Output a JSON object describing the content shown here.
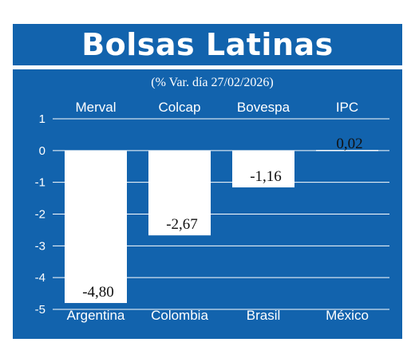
{
  "chart_data": {
    "type": "bar",
    "title": "Bolsas Latinas",
    "subtitle": "(% Var. día 27/02/2026)",
    "index_names": [
      "Merval",
      "Colcap",
      "Bovespa",
      "IPC"
    ],
    "categories": [
      "Argentina",
      "Colombia",
      "Brasil",
      "México"
    ],
    "values": [
      -4.8,
      -2.67,
      -1.16,
      0.02
    ],
    "value_labels": [
      "-4,80",
      "-2,67",
      "-1,16",
      "0,02"
    ],
    "ylim": [
      -5,
      1
    ],
    "yticks": [
      1,
      0,
      -1,
      -2,
      -3,
      -4,
      -5
    ],
    "ytick_labels": [
      "1",
      "0",
      "-1",
      "-2",
      "-3",
      "-4",
      "-5"
    ],
    "grid": true,
    "colors": {
      "background": "#1263ad",
      "bars": "#ffffff",
      "grid": "#ffffff",
      "text": "#ffffff",
      "value_text": "#111111"
    }
  }
}
